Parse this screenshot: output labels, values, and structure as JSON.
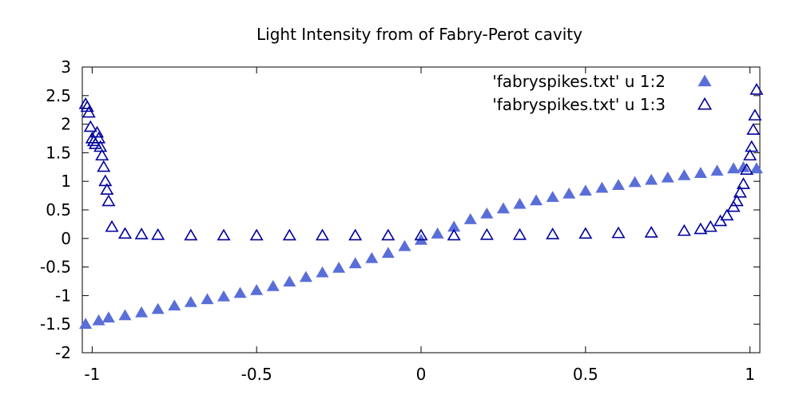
{
  "chart_data": {
    "type": "scatter",
    "title": "Light Intensity from of Fabry-Perot cavity",
    "xlabel": "",
    "ylabel": "",
    "xlim": [
      -1.03,
      1.03
    ],
    "ylim": [
      -2,
      3
    ],
    "xticks": [
      -1,
      -0.5,
      0,
      0.5,
      1
    ],
    "xtick_labels": [
      "-1",
      "-0.5",
      "0",
      "0.5",
      "1"
    ],
    "yticks": [
      -2,
      -1.5,
      -1,
      -0.5,
      0,
      0.5,
      1,
      1.5,
      2,
      2.5,
      3
    ],
    "ytick_labels": [
      "-2",
      "-1.5",
      "-1",
      "-0.5",
      "0",
      "0.5",
      "1",
      "1.5",
      "2",
      "2.5",
      "3"
    ],
    "grid": false,
    "legend_position": "top-right",
    "series": [
      {
        "name": "'fabryspikes.txt' u 1:2",
        "marker": "filled-triangle",
        "color": "#5a6ed8",
        "x": [
          -1.02,
          -0.98,
          -0.95,
          -0.9,
          -0.85,
          -0.8,
          -0.75,
          -0.7,
          -0.65,
          -0.6,
          -0.55,
          -0.5,
          -0.45,
          -0.4,
          -0.35,
          -0.3,
          -0.25,
          -0.2,
          -0.15,
          -0.1,
          -0.05,
          0,
          0.05,
          0.1,
          0.15,
          0.2,
          0.25,
          0.3,
          0.35,
          0.4,
          0.45,
          0.5,
          0.55,
          0.6,
          0.65,
          0.7,
          0.75,
          0.8,
          0.85,
          0.9,
          0.95,
          0.98,
          1.02
        ],
        "y": [
          -1.5,
          -1.44,
          -1.39,
          -1.35,
          -1.3,
          -1.24,
          -1.18,
          -1.12,
          -1.07,
          -1.02,
          -0.96,
          -0.91,
          -0.84,
          -0.76,
          -0.68,
          -0.6,
          -0.52,
          -0.44,
          -0.35,
          -0.26,
          -0.14,
          -0.03,
          0.08,
          0.2,
          0.33,
          0.43,
          0.52,
          0.6,
          0.66,
          0.72,
          0.78,
          0.83,
          0.88,
          0.93,
          0.98,
          1.02,
          1.06,
          1.1,
          1.14,
          1.18,
          1.22,
          1.24,
          1.22
        ]
      },
      {
        "name": "'fabryspikes.txt' u 1:3",
        "marker": "open-triangle",
        "color": "#00009c",
        "x": [
          -1.02,
          -1.015,
          -1.01,
          -1.005,
          -1.0,
          -0.995,
          -0.99,
          -0.985,
          -0.98,
          -0.975,
          -0.97,
          -0.965,
          -0.96,
          -0.955,
          -0.95,
          -0.94,
          -0.9,
          -0.85,
          -0.8,
          -0.7,
          -0.6,
          -0.5,
          -0.4,
          -0.3,
          -0.2,
          -0.1,
          0,
          0.1,
          0.2,
          0.3,
          0.4,
          0.5,
          0.6,
          0.7,
          0.8,
          0.85,
          0.88,
          0.91,
          0.93,
          0.95,
          0.96,
          0.97,
          0.98,
          0.99,
          1.0,
          1.005,
          1.01,
          1.015,
          1.02
        ],
        "y": [
          2.35,
          2.3,
          2.2,
          1.95,
          1.75,
          1.7,
          1.65,
          1.85,
          1.75,
          1.6,
          1.45,
          1.25,
          1.0,
          0.85,
          0.65,
          0.2,
          0.08,
          0.07,
          0.06,
          0.05,
          0.05,
          0.05,
          0.05,
          0.05,
          0.05,
          0.05,
          0.05,
          0.05,
          0.06,
          0.06,
          0.07,
          0.08,
          0.09,
          0.1,
          0.13,
          0.16,
          0.2,
          0.3,
          0.4,
          0.55,
          0.65,
          0.8,
          0.95,
          1.2,
          1.45,
          1.6,
          1.9,
          2.15,
          2.6
        ]
      }
    ]
  }
}
